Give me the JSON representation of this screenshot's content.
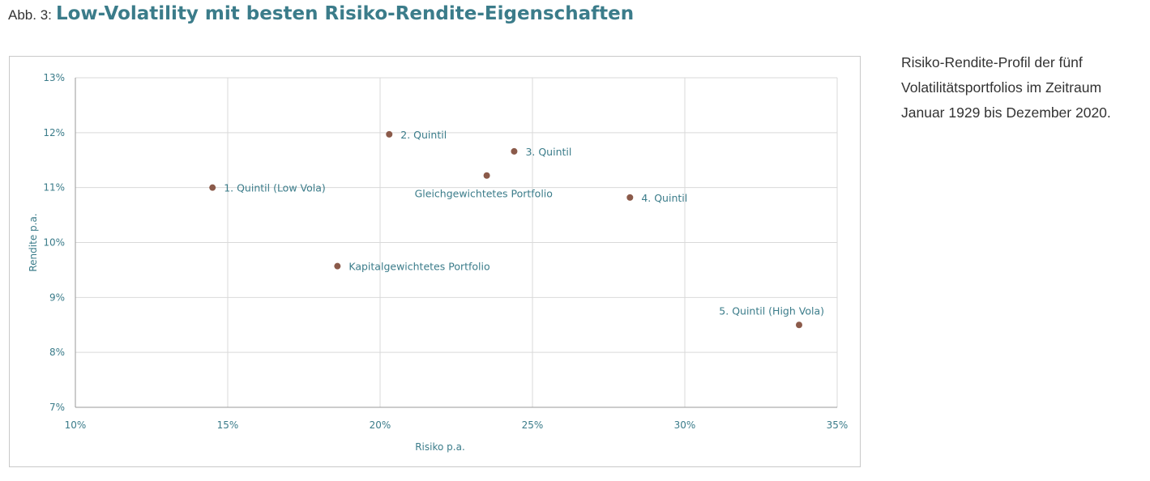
{
  "heading": {
    "prefix": "Abb. 3:",
    "title": "Low-Volatility mit besten Risiko-Rendite-Eigenschaften"
  },
  "side_caption": {
    "lines": [
      "Risiko-Rendite-Profil der fünf",
      "Volatilitätsportfolios im Zeitraum",
      "Januar 1929 bis Dezember 2020."
    ]
  },
  "colors": {
    "accent": "#3b7c8a",
    "point": "#8b5a4a",
    "grid": "#d9d9d9",
    "axis": "#9a9a9a",
    "frame": "#c9c9c9"
  },
  "chart_data": {
    "type": "scatter",
    "title": "",
    "xlabel": "Risiko p.a.",
    "ylabel": "Rendite p.a.",
    "xlim": [
      10,
      35
    ],
    "ylim": [
      7,
      13
    ],
    "xticks": [
      10,
      15,
      20,
      25,
      30,
      35
    ],
    "yticks": [
      7,
      8,
      9,
      10,
      11,
      12,
      13
    ],
    "xtick_labels": [
      "10%",
      "15%",
      "20%",
      "25%",
      "30%",
      "35%"
    ],
    "ytick_labels": [
      "7%",
      "8%",
      "9%",
      "10%",
      "11%",
      "12%",
      "13%"
    ],
    "grid": true,
    "legend": "none",
    "points": [
      {
        "label": "1. Quintil (Low Vola)",
        "x": 14.5,
        "y": 11.0,
        "label_position": "right"
      },
      {
        "label": "2. Quintil",
        "x": 20.3,
        "y": 11.97,
        "label_position": "right"
      },
      {
        "label": "3. Quintil",
        "x": 24.4,
        "y": 11.66,
        "label_position": "right"
      },
      {
        "label": "Gleichgewichtetes Portfolio",
        "x": 23.5,
        "y": 11.22,
        "label_position": "below"
      },
      {
        "label": "4. Quintil",
        "x": 28.2,
        "y": 10.82,
        "label_position": "right"
      },
      {
        "label": "Kapitalgewichtetes Portfolio",
        "x": 18.6,
        "y": 9.57,
        "label_position": "right"
      },
      {
        "label": "5. Quintil (High Vola)",
        "x": 33.75,
        "y": 8.5,
        "label_position": "above-left"
      }
    ]
  }
}
